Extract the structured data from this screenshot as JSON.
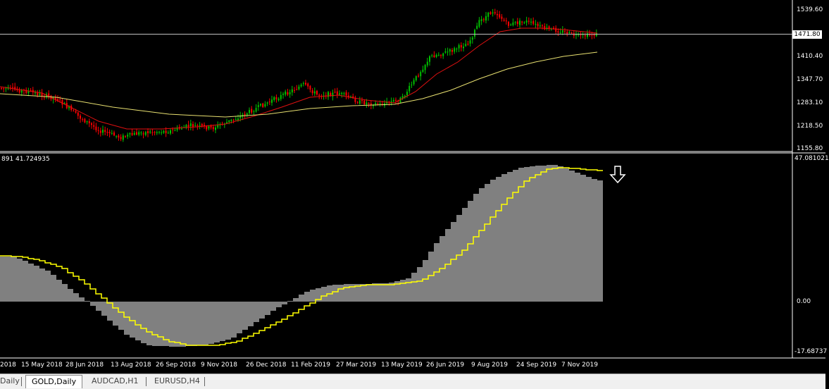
{
  "window": {
    "symbol": "GOLD",
    "timeframe": "Daily"
  },
  "price_axis": {
    "labels": [
      "1539.60",
      "1410.40",
      "1347.70",
      "1283.10",
      "1218.50",
      "1155.80"
    ],
    "current_price": "1471.80"
  },
  "indicator": {
    "info_text": "891 41.724935",
    "axis_labels": [
      "47.081021",
      "0.00",
      "-17.68737"
    ]
  },
  "time_axis": {
    "labels": [
      "2018",
      "15 May 2018",
      "28 Jun 2018",
      "13 Aug 2018",
      "26 Sep 2018",
      "9 Nov 2018",
      "26 Dec 2018",
      "11 Feb 2019",
      "27 Mar 2019",
      "13 May 2019",
      "26 Jun 2019",
      "9 Aug 2019",
      "24 Sep 2019",
      "7 Nov 2019"
    ]
  },
  "annotation": {
    "icon": "down-arrow-icon"
  },
  "tabs": [
    {
      "label": "Daily",
      "active": false
    },
    {
      "label": "GOLD,Daily",
      "active": true
    },
    {
      "label": "AUDCAD,H1",
      "active": false
    },
    {
      "label": "EURUSD,H4",
      "active": false
    }
  ],
  "colors": {
    "background": "#000000",
    "bull_candle": "#00c000",
    "bear_candle": "#ff0000",
    "ma_fast": "#e01010",
    "ma_slow": "#e8e070",
    "histogram": "#808080",
    "signal_line": "#ffff00",
    "axis_text": "#ffffff"
  }
}
